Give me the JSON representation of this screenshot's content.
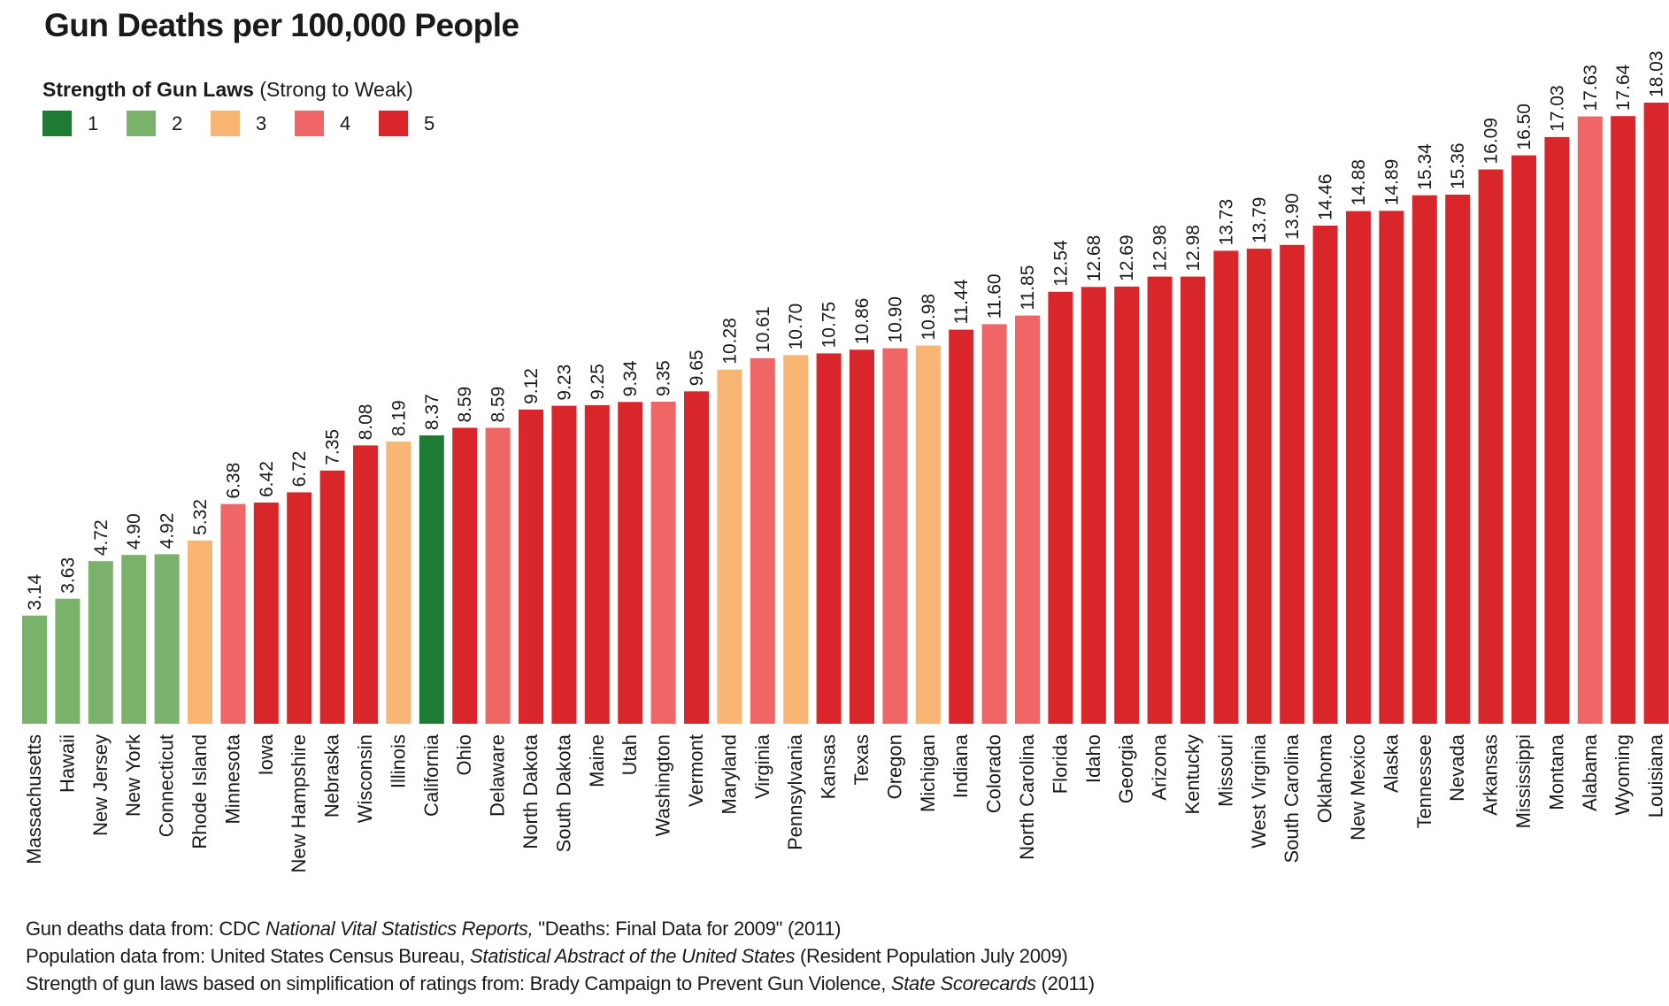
{
  "title": "Gun Deaths per 100,000 People",
  "legend": {
    "title_bold": "Strength of Gun Laws",
    "title_rest": " (Strong to Weak)",
    "items": [
      {
        "label": "1",
        "color": "#1e7b34"
      },
      {
        "label": "2",
        "color": "#7bb26b"
      },
      {
        "label": "3",
        "color": "#f8b574"
      },
      {
        "label": "4",
        "color": "#f06565"
      },
      {
        "label": "5",
        "color": "#d9262a"
      }
    ]
  },
  "chart_data": {
    "type": "bar",
    "title": "Gun Deaths per 100,000 People",
    "xlabel": "",
    "ylabel": "",
    "ylim": [
      0,
      18.5
    ],
    "grid": false,
    "legend_position": "top-left",
    "categories": [
      "Massachusetts",
      "Hawaii",
      "New Jersey",
      "New York",
      "Connecticut",
      "Rhode Island",
      "Minnesota",
      "Iowa",
      "New Hampshire",
      "Nebraska",
      "Wisconsin",
      "Illinois",
      "California",
      "Ohio",
      "Delaware",
      "North Dakota",
      "South Dakota",
      "Maine",
      "Utah",
      "Washington",
      "Vermont",
      "Maryland",
      "Virginia",
      "Pennsylvania",
      "Kansas",
      "Texas",
      "Oregon",
      "Michigan",
      "Indiana",
      "Colorado",
      "North Carolina",
      "Florida",
      "Idaho",
      "Georgia",
      "Arizona",
      "Kentucky",
      "Missouri",
      "West Virginia",
      "South Carolina",
      "Oklahoma",
      "New Mexico",
      "Alaska",
      "Tennessee",
      "Nevada",
      "Arkansas",
      "Mississippi",
      "Montana",
      "Alabama",
      "Wyoming",
      "Louisiana"
    ],
    "values": [
      3.14,
      3.63,
      4.72,
      4.9,
      4.92,
      5.32,
      6.38,
      6.42,
      6.72,
      7.35,
      8.08,
      8.19,
      8.37,
      8.59,
      8.59,
      9.12,
      9.23,
      9.25,
      9.34,
      9.35,
      9.65,
      10.28,
      10.61,
      10.7,
      10.75,
      10.86,
      10.9,
      10.98,
      11.44,
      11.6,
      11.85,
      12.54,
      12.68,
      12.69,
      12.98,
      12.98,
      13.73,
      13.79,
      13.9,
      14.46,
      14.88,
      14.89,
      15.34,
      15.36,
      16.09,
      16.5,
      17.03,
      17.63,
      17.64,
      18.03
    ],
    "value_labels": [
      "3.14",
      "3.63",
      "4.72",
      "4.90",
      "4.92",
      "5.32",
      "6.38",
      "6.42",
      "6.72",
      "7.35",
      "8.08",
      "8.19",
      "8.37",
      "8.59",
      "8.59",
      "9.12",
      "9.23",
      "9.25",
      "9.34",
      "9.35",
      "9.65",
      "10.28",
      "10.61",
      "10.70",
      "10.75",
      "10.86",
      "10.90",
      "10.98",
      "11.44",
      "11.60",
      "11.85",
      "12.54",
      "12.68",
      "12.69",
      "12.98",
      "12.98",
      "13.73",
      "13.79",
      "13.90",
      "14.46",
      "14.88",
      "14.89",
      "15.34",
      "15.36",
      "16.09",
      "16.50",
      "17.03",
      "17.63",
      "17.64",
      "18.03"
    ],
    "law_strength": [
      2,
      2,
      2,
      2,
      2,
      3,
      4,
      5,
      5,
      5,
      5,
      3,
      1,
      5,
      4,
      5,
      5,
      5,
      5,
      4,
      5,
      3,
      4,
      3,
      5,
      5,
      4,
      3,
      5,
      4,
      4,
      5,
      5,
      5,
      5,
      5,
      5,
      5,
      5,
      5,
      5,
      5,
      5,
      5,
      5,
      5,
      5,
      4,
      5,
      5
    ]
  },
  "footer": {
    "line1_a": "Gun deaths data from: CDC ",
    "line1_b": "National Vital Statistics Reports,",
    "line1_c": "  \"Deaths: Final Data for 2009\" (2011)",
    "line2_a": "Population data from: United States Census Bureau, ",
    "line2_b": "Statistical Abstract of the United States",
    "line2_c": "  (Resident Population July 2009)",
    "line3_a": "Strength of gun laws based on simplification of ratings from: Brady Campaign to Prevent Gun Violence, ",
    "line3_b": "State Scorecards",
    "line3_c": " (2011)"
  }
}
